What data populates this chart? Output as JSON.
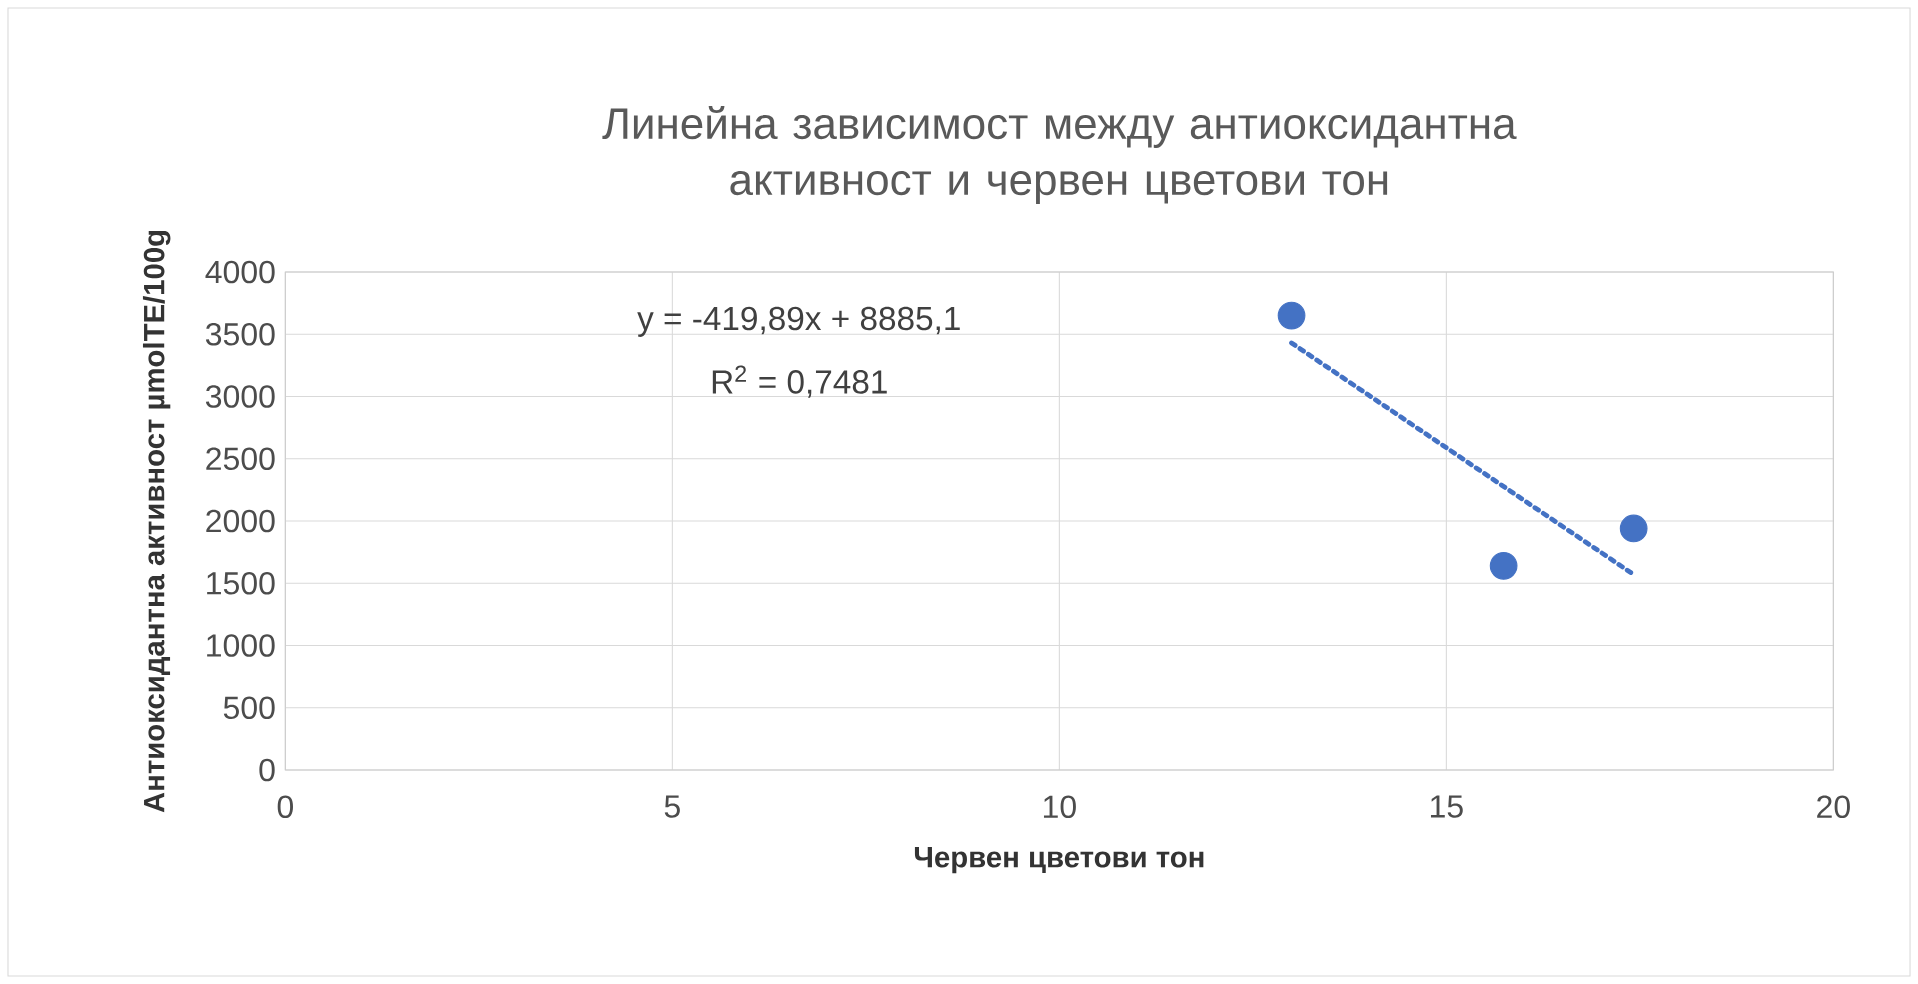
{
  "chart_data": {
    "type": "scatter",
    "title": "Линейна зависимост между антиоксидантна активност и червен цветови тон",
    "xlabel": "Червен цветови тон",
    "ylabel": "Антиоксидантна активност µmolTE/100g",
    "series": [
      {
        "color": "#4472c4",
        "marker": "circle",
        "x": [
          13.0,
          15.74,
          17.42
        ],
        "values": [
          3650,
          1640,
          1940
        ]
      },
      {
        "type": "line",
        "color": "#4472c4",
        "line_style": "dotted",
        "marker": "none",
        "x": [
          13.0,
          17.42
        ],
        "values": [
          3430,
          1570
        ]
      }
    ],
    "annotations": [
      "y = -419,89x + 8885,1",
      "R$^{2}$ = 0,7481"
    ],
    "xlim": [
      0,
      20
    ],
    "ylim": [
      0,
      4000
    ],
    "xticks": [
      0,
      5,
      10,
      15,
      20
    ],
    "yticks": [
      0,
      500,
      1000,
      1500,
      2000,
      2500,
      3000,
      3500,
      4000
    ],
    "grid": true
  }
}
